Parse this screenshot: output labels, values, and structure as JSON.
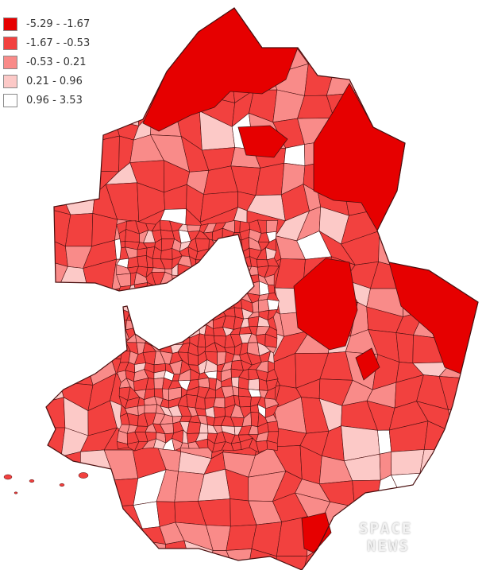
{
  "legend": {
    "items": [
      {
        "label": "-5.29 - -1.67",
        "color": "#e60000"
      },
      {
        "label": "-1.67 - -0.53",
        "color": "#f2413f"
      },
      {
        "label": "-0.53 - 0.21",
        "color": "#f98b89"
      },
      {
        "label": "0.21 - 0.96",
        "color": "#fcc9c7"
      },
      {
        "label": "0.96 - 3.53",
        "color": "#ffffff"
      }
    ]
  },
  "map": {
    "boundary_color": "#4a1010",
    "dominant_class": "-1.67 - -0.53"
  },
  "watermark": {
    "line1": "SPACE",
    "line2": "NEWS"
  }
}
